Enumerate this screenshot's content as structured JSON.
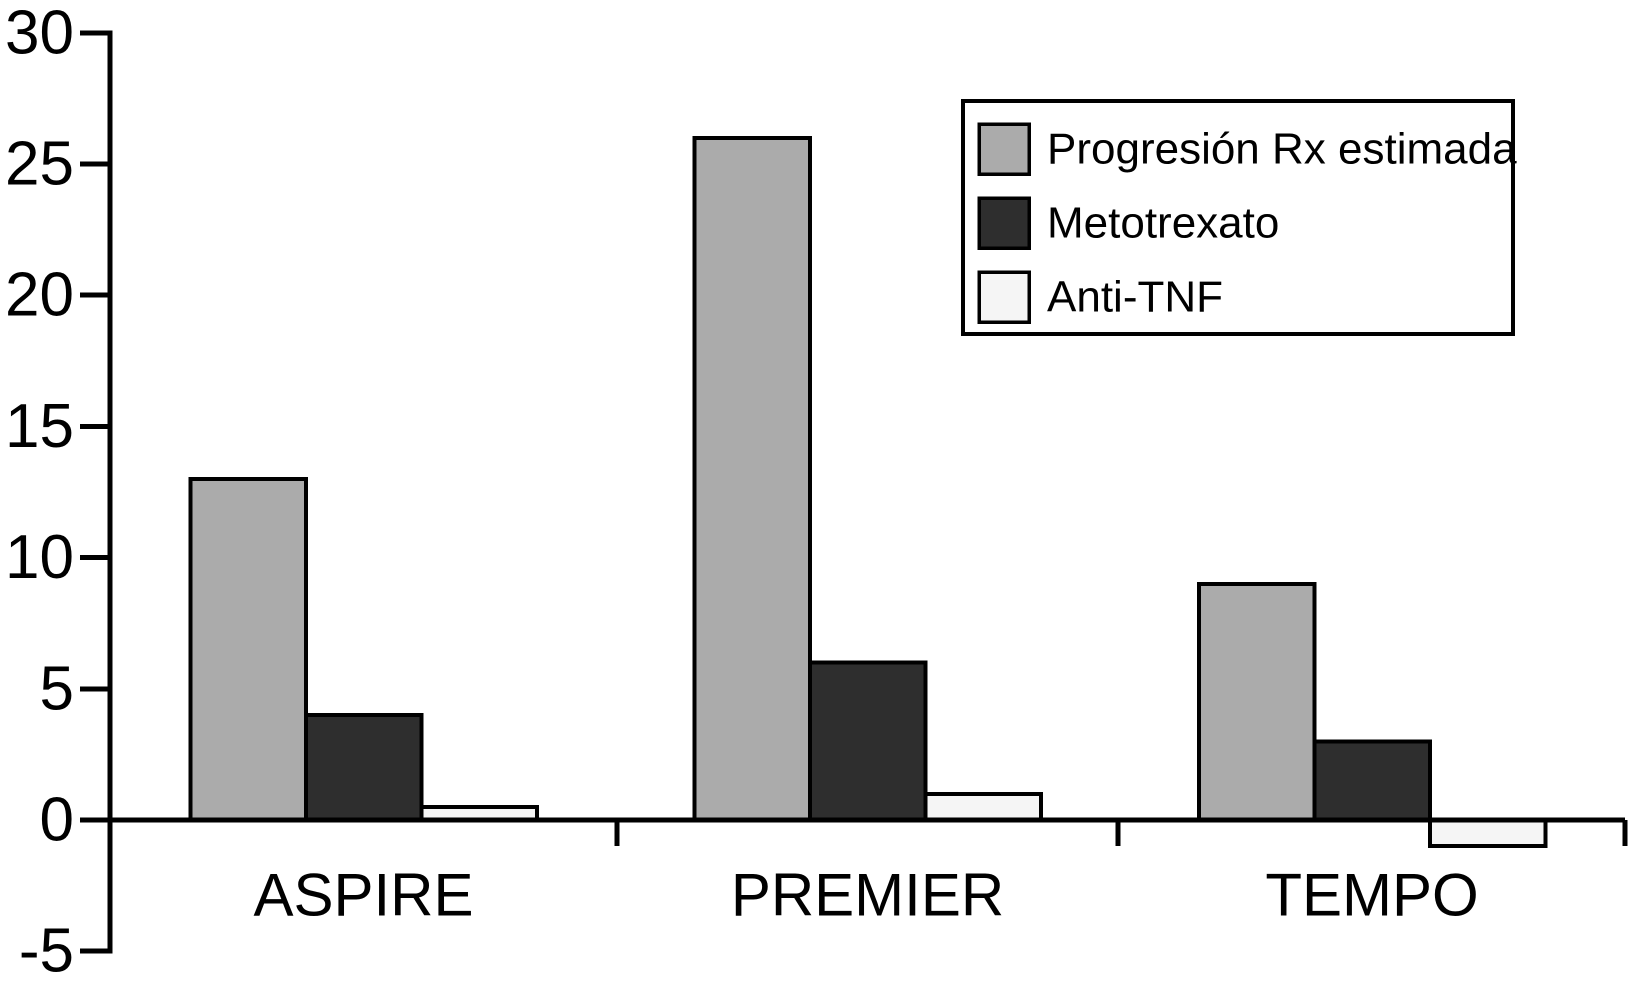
{
  "chart_data": {
    "type": "bar",
    "categories": [
      "ASPIRE",
      "PREMIER",
      "TEMPO"
    ],
    "series": [
      {
        "name": "Progresión Rx estimada",
        "values": [
          13,
          26,
          9
        ],
        "color": "#ababab"
      },
      {
        "name": "Metotrexato",
        "values": [
          4,
          6,
          3
        ],
        "color": "#2e2e2e"
      },
      {
        "name": "Anti-TNF",
        "values": [
          0.5,
          1,
          -1
        ],
        "color": "#f5f5f5"
      }
    ],
    "title": "",
    "xlabel": "",
    "ylabel": "",
    "ylim": [
      -5,
      30
    ],
    "yticks": [
      30,
      25,
      20,
      15,
      10,
      5,
      0,
      -5
    ],
    "grid": false,
    "legend_position": "top-right",
    "colors": {
      "axis": "#000000",
      "bar_border": "#000000",
      "legend_border": "#000000",
      "background": "#ffffff",
      "text": "#000000"
    }
  }
}
